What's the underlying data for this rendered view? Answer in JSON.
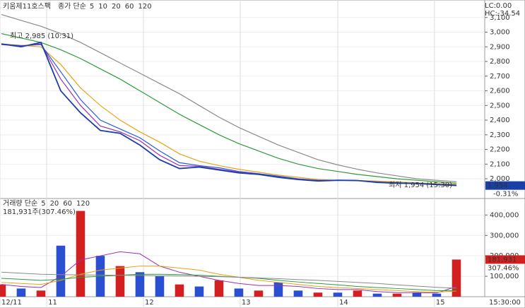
{
  "chart_data": [
    {
      "type": "line",
      "title": "키움제11호스팩",
      "legend_title": "종가 단순",
      "lc_label": "LC:0.00",
      "hc_label": "HC:-34.54",
      "annotations": [
        "최고 2,985 (10:31)",
        "최저 1,954 (15:30)"
      ],
      "last_price_label": "1,954",
      "change_label": "-0.31%",
      "last_time_label": "15:30:00",
      "x": [
        0,
        1,
        2,
        3,
        4,
        5,
        6,
        7,
        8,
        9,
        10,
        11,
        12,
        13,
        14,
        15,
        16,
        17,
        18,
        19,
        20,
        21,
        22,
        23
      ],
      "xlim": [
        -0.07,
        24.43
      ],
      "xticks": [
        {
          "value": -0.07,
          "label": "12/11"
        },
        {
          "value": 2.29,
          "label": "11"
        },
        {
          "value": 7.18,
          "label": "12"
        },
        {
          "value": 12.07,
          "label": "13"
        },
        {
          "value": 17.0,
          "label": "14"
        },
        {
          "value": 21.89,
          "label": "15"
        }
      ],
      "ylim": [
        1880,
        3200
      ],
      "yticks": [
        {
          "value": 2000,
          "label": "2,000"
        },
        {
          "value": 2100,
          "label": "2,100"
        },
        {
          "value": 2200,
          "label": "2,200"
        },
        {
          "value": 2300,
          "label": "2,300"
        },
        {
          "value": 2400,
          "label": "2,400"
        },
        {
          "value": 2500,
          "label": "2,500"
        },
        {
          "value": 2600,
          "label": "2,600"
        },
        {
          "value": 2700,
          "label": "2,700"
        },
        {
          "value": 2800,
          "label": "2,800"
        },
        {
          "value": 2900,
          "label": "2,900"
        },
        {
          "value": 3000,
          "label": "3,000"
        },
        {
          "value": 3100,
          "label": "3,100"
        }
      ],
      "grid": true,
      "color": "#1a3fa6",
      "values": [
        2920,
        2900,
        2930,
        2600,
        2450,
        2330,
        2310,
        2230,
        2130,
        2070,
        2080,
        2060,
        2040,
        2030,
        2010,
        1995,
        1985,
        1990,
        1988,
        1975,
        1970,
        1968,
        1960,
        1954
      ],
      "series": [
        {
          "name": "5",
          "color": "#9a2fb5",
          "values": [
            2915,
            2905,
            2920,
            2680,
            2500,
            2360,
            2320,
            2260,
            2160,
            2090,
            2085,
            2065,
            2045,
            2032,
            2012,
            1998,
            1988,
            1990,
            1988,
            1977,
            1971,
            1968,
            1961,
            1956
          ]
        },
        {
          "name": "10",
          "color": "#2a5ad8",
          "values": [
            2918,
            2908,
            2915,
            2730,
            2540,
            2400,
            2340,
            2280,
            2190,
            2110,
            2090,
            2075,
            2050,
            2035,
            2018,
            2000,
            1990,
            1990,
            1988,
            1979,
            1973,
            1969,
            1963,
            1958
          ]
        },
        {
          "name": "20",
          "color": "#e8a317",
          "values": [
            2920,
            2910,
            2900,
            2780,
            2620,
            2500,
            2400,
            2320,
            2250,
            2170,
            2120,
            2090,
            2065,
            2045,
            2025,
            2010,
            1995,
            1990,
            1988,
            1984,
            1978,
            1972,
            1967,
            1962
          ]
        },
        {
          "name": "60",
          "color": "#2f9a3a",
          "values": [
            2990,
            2960,
            2930,
            2880,
            2820,
            2750,
            2680,
            2600,
            2520,
            2440,
            2370,
            2300,
            2240,
            2190,
            2140,
            2100,
            2070,
            2050,
            2030,
            2015,
            2000,
            1990,
            1980,
            1970
          ]
        },
        {
          "name": "120",
          "color": "#8a8a8a",
          "values": [
            3120,
            3080,
            3040,
            2990,
            2930,
            2860,
            2790,
            2720,
            2650,
            2580,
            2500,
            2420,
            2350,
            2290,
            2230,
            2180,
            2130,
            2095,
            2065,
            2040,
            2020,
            2000,
            1990,
            1980
          ]
        }
      ]
    },
    {
      "type": "bar",
      "legend_title": "거래량 단순",
      "subtitle": "181,931주(307.46%)",
      "last_volume_label": "181,931",
      "ratio_label": "307.46%",
      "ylim": [
        0,
        467000
      ],
      "yticks": [
        {
          "value": 100000,
          "label": "100,000"
        },
        {
          "value": 200000,
          "label": "200,000"
        },
        {
          "value": 300000,
          "label": "300,000"
        },
        {
          "value": 400000,
          "label": "400,000"
        }
      ],
      "grid": true,
      "values": [
        60000,
        40000,
        30000,
        250000,
        420000,
        200000,
        150000,
        120000,
        100000,
        60000,
        50000,
        80000,
        40000,
        30000,
        70000,
        30000,
        20000,
        20000,
        30000,
        15000,
        15000,
        20000,
        15000,
        181931
      ],
      "bar_colors": [
        "#d21f1f",
        "#2a4fd0",
        "#d21f1f",
        "#2a4fd0",
        "#d21f1f",
        "#2a4fd0",
        "#d21f1f",
        "#2a4fd0",
        "#2a4fd0",
        "#d21f1f",
        "#2a4fd0",
        "#d21f1f",
        "#2a4fd0",
        "#d21f1f",
        "#2a4fd0",
        "#2a4fd0",
        "#d21f1f",
        "#2a4fd0",
        "#d21f1f",
        "#2a4fd0",
        "#d21f1f",
        "#2a4fd0",
        "#2a4fd0",
        "#d21f1f"
      ],
      "series": [
        {
          "name": "5",
          "color": "#9a2fb5",
          "values": [
            60000,
            50000,
            45000,
            100000,
            180000,
            200000,
            220000,
            210000,
            150000,
            120000,
            100000,
            80000,
            65000,
            55000,
            55000,
            50000,
            40000,
            35000,
            35000,
            25000,
            20000,
            20000,
            18000,
            50000
          ]
        },
        {
          "name": "20",
          "color": "#e8a317",
          "values": [
            70000,
            65000,
            60000,
            80000,
            110000,
            130000,
            140000,
            150000,
            150000,
            140000,
            130000,
            110000,
            95000,
            80000,
            70000,
            60000,
            50000,
            45000,
            40000,
            35000,
            30000,
            25000,
            22000,
            28000
          ]
        },
        {
          "name": "60",
          "color": "#2f9a3a",
          "values": [
            90000,
            85000,
            80000,
            85000,
            95000,
            100000,
            105000,
            110000,
            110000,
            108000,
            105000,
            100000,
            95000,
            90000,
            80000,
            72000,
            65000,
            58000,
            50000,
            45000,
            40000,
            35000,
            30000,
            30000
          ]
        },
        {
          "name": "120",
          "color": "#8a8a8a",
          "values": [
            120000,
            115000,
            110000,
            108000,
            107000,
            106000,
            105000,
            104000,
            103000,
            101000,
            100000,
            98000,
            95000,
            92000,
            88000,
            84000,
            80000,
            75000,
            70000,
            65000,
            58000,
            52000,
            46000,
            42000
          ]
        }
      ]
    }
  ]
}
